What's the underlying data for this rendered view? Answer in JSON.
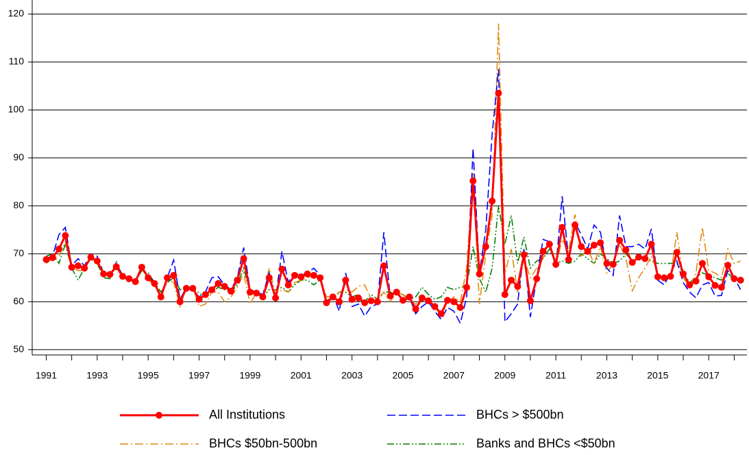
{
  "chart_data": {
    "type": "line",
    "x": [
      1991,
      1991.25,
      1991.5,
      1991.75,
      1992,
      1992.25,
      1992.5,
      1992.75,
      1993,
      1993.25,
      1993.5,
      1993.75,
      1994,
      1994.25,
      1994.5,
      1994.75,
      1995,
      1995.25,
      1995.5,
      1995.75,
      1996,
      1996.25,
      1996.5,
      1996.75,
      1997,
      1997.25,
      1997.5,
      1997.75,
      1998,
      1998.25,
      1998.5,
      1998.75,
      1999,
      1999.25,
      1999.5,
      1999.75,
      2000,
      2000.25,
      2000.5,
      2000.75,
      2001,
      2001.25,
      2001.5,
      2001.75,
      2002,
      2002.25,
      2002.5,
      2002.75,
      2003,
      2003.25,
      2003.5,
      2003.75,
      2004,
      2004.25,
      2004.5,
      2004.75,
      2005,
      2005.25,
      2005.5,
      2005.75,
      2006,
      2006.25,
      2006.5,
      2006.75,
      2007,
      2007.25,
      2007.5,
      2007.75,
      2008,
      2008.25,
      2008.5,
      2008.75,
      2009,
      2009.25,
      2009.5,
      2009.75,
      2010,
      2010.25,
      2010.5,
      2010.75,
      2011,
      2011.25,
      2011.5,
      2011.75,
      2012,
      2012.25,
      2012.5,
      2012.75,
      2013,
      2013.25,
      2013.5,
      2013.75,
      2014,
      2014.25,
      2014.5,
      2014.75,
      2015,
      2015.25,
      2015.5,
      2015.75,
      2016,
      2016.25,
      2016.5,
      2016.75,
      2017,
      2017.25,
      2017.5,
      2017.75,
      2018,
      2018.25
    ],
    "series": [
      {
        "name": "All Institutions",
        "color": "#ff0000",
        "style": "solid",
        "marker": true,
        "values": [
          68.8,
          69.2,
          71,
          73.8,
          67.2,
          67.5,
          67,
          69.3,
          68.5,
          65.8,
          65.7,
          67.3,
          65.3,
          64.8,
          64.2,
          67.2,
          65,
          63.8,
          61,
          65,
          65.5,
          60,
          62.8,
          62.8,
          60.5,
          61.5,
          62.5,
          63.8,
          63.2,
          62.2,
          64.5,
          69,
          62,
          61.8,
          61,
          65,
          60.8,
          66.8,
          63.5,
          65.5,
          65.2,
          65.8,
          65.5,
          65,
          59.8,
          61,
          60,
          64.5,
          60.5,
          60.8,
          59.8,
          60.2,
          60,
          67.5,
          61.2,
          62,
          60.3,
          61,
          58.5,
          60.8,
          60.2,
          59,
          57.5,
          60.3,
          60,
          58.8,
          63,
          85.2,
          65.8,
          71.5,
          81,
          103.5,
          61.5,
          64.5,
          63.2,
          69.8,
          60.2,
          64.8,
          70.5,
          72,
          67.8,
          75.5,
          68.8,
          76,
          71.5,
          70.5,
          71.8,
          72.3,
          68,
          67.8,
          72.8,
          70.8,
          68.2,
          69.3,
          69,
          72,
          65.2,
          65,
          65.3,
          70.3,
          65.8,
          63.5,
          64.3,
          68,
          65.2,
          63.4,
          63,
          67.6,
          64.8,
          64.5
        ]
      },
      {
        "name": "BHCs > $500bn",
        "color": "#0000ff",
        "style": "dashed",
        "values": [
          69,
          69.5,
          74,
          75.5,
          67.5,
          69,
          67.5,
          70,
          69.5,
          66,
          65.5,
          68,
          65.5,
          65,
          64,
          67,
          65.5,
          64,
          61,
          65,
          68.7,
          60.5,
          63,
          62.5,
          61,
          62,
          65,
          65.2,
          63.5,
          62.5,
          65,
          71.3,
          62.5,
          62,
          61.5,
          66,
          60.5,
          70.5,
          64,
          66,
          65.5,
          66,
          67,
          65.5,
          60,
          61.5,
          58,
          66,
          59,
          59.5,
          57,
          59,
          59.5,
          74.5,
          61,
          62.5,
          60,
          61,
          57.5,
          59,
          60,
          58,
          56.3,
          58.8,
          58,
          55.5,
          61,
          92,
          66,
          75,
          95,
          108.5,
          55.8,
          57.5,
          59.5,
          71,
          56.8,
          65,
          73,
          72.5,
          67,
          82,
          69,
          76.5,
          74,
          71,
          76,
          74.5,
          67,
          65.5,
          78,
          71.5,
          71.5,
          72,
          71,
          75.2,
          64.5,
          63.5,
          66,
          68.5,
          64,
          62,
          60.8,
          63.5,
          64,
          61.2,
          61.3,
          66.5,
          65,
          62.5
        ]
      },
      {
        "name": "BHCs $50bn-500bn",
        "color": "#e08a10",
        "style": "dashdot",
        "values": [
          68,
          69,
          69.5,
          72.5,
          67,
          66.5,
          66.5,
          69.5,
          68,
          65.5,
          66,
          67.5,
          65,
          64.5,
          64,
          67,
          64.5,
          63.5,
          61,
          64.5,
          64,
          59,
          63,
          63,
          59,
          59.5,
          62,
          62,
          60,
          61,
          63,
          66,
          59.5,
          62,
          60.5,
          67,
          61.5,
          62.5,
          62,
          64,
          64.5,
          65,
          65.5,
          65,
          61,
          61,
          62,
          62.5,
          62,
          63.2,
          63.5,
          60.5,
          60,
          62,
          60,
          62,
          61.5,
          60,
          59.5,
          61,
          60.5,
          59,
          57,
          60,
          61,
          60,
          67,
          87,
          59.5,
          70,
          78,
          118,
          66,
          71,
          62,
          69,
          65,
          67,
          69,
          72.5,
          67.5,
          73,
          70.5,
          78.2,
          69.5,
          71,
          68,
          71.5,
          66,
          68,
          72,
          69,
          62.3,
          65,
          67,
          69.5,
          66,
          64.5,
          65,
          74.5,
          65,
          63,
          66,
          75.5,
          66.5,
          66,
          65,
          71,
          68,
          68.5
        ]
      },
      {
        "name": "Banks and BHCs <$50bn",
        "color": "#008000",
        "style": "dashdotdot",
        "values": [
          69.5,
          70,
          68,
          72,
          67,
          64.5,
          67,
          69,
          68,
          65,
          64.8,
          68.5,
          65,
          64.5,
          64.2,
          66.5,
          66,
          64,
          62,
          64,
          65,
          62.5,
          63,
          62.8,
          61.8,
          61,
          62,
          63,
          62.5,
          62,
          63.5,
          67,
          62,
          61.5,
          61,
          62.5,
          62.5,
          63,
          62,
          63.5,
          64.5,
          64.5,
          63.5,
          64.5,
          60,
          60.5,
          62,
          62,
          61,
          61.5,
          60,
          61.5,
          60.5,
          62,
          62,
          61.5,
          61.5,
          60.5,
          61,
          63,
          61.5,
          60.5,
          61,
          63,
          62.5,
          63,
          63.2,
          71.5,
          64.8,
          62,
          67,
          80,
          72,
          78,
          68,
          73.5,
          67,
          68.5,
          69,
          71,
          68,
          68.5,
          68,
          68.5,
          70,
          69,
          68,
          70,
          69,
          68,
          68.5,
          70,
          68.5,
          69,
          69,
          68.5,
          68,
          68,
          68,
          68,
          66,
          64,
          65,
          66,
          65.5,
          65,
          64.5,
          66,
          64.5,
          65
        ]
      }
    ],
    "xlim": [
      1990.45,
      2018.5
    ],
    "xticks": [
      1991,
      1993,
      1995,
      1997,
      1999,
      2001,
      2003,
      2005,
      2007,
      2009,
      2011,
      2013,
      2015,
      2017
    ],
    "xminorticks": [
      1992,
      1994,
      1996,
      1998,
      2000,
      2002,
      2004,
      2006,
      2008,
      2010,
      2012,
      2014,
      2016,
      2018
    ],
    "ylim": [
      48.9,
      122.5
    ],
    "yticks": [
      50,
      60,
      70,
      80,
      90,
      100,
      110,
      120
    ],
    "grid": true,
    "legend": "bottom"
  }
}
